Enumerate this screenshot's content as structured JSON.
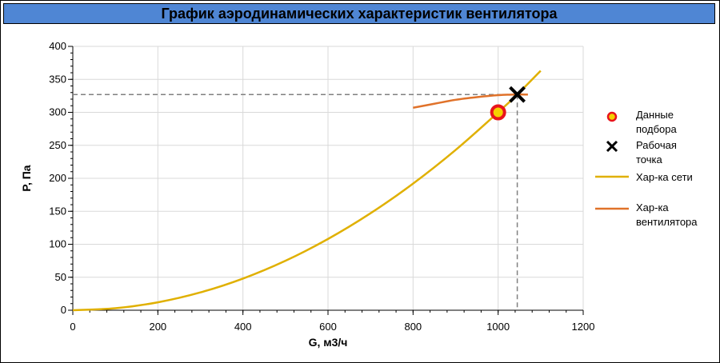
{
  "title": "График аэродинамических характеристик вентилятора",
  "colors": {
    "title_bg": "#4f86d4",
    "network": "#e0b000",
    "fan": "#e0722a",
    "selection_fill": "#f5d000",
    "selection_ring": "#e8141c",
    "operating": "#000000",
    "guide": "#808080",
    "grid": "#d9d9d9"
  },
  "chart_data": {
    "type": "line",
    "title": "График аэродинамических характеристик вентилятора",
    "xlabel": "G, м3/ч",
    "ylabel": "P, Па",
    "xlim": [
      0,
      1200
    ],
    "ylim": [
      0,
      400
    ],
    "xticks": [
      0,
      200,
      400,
      600,
      800,
      1000,
      1200
    ],
    "yticks": [
      0,
      50,
      100,
      150,
      200,
      250,
      300,
      350,
      400
    ],
    "grid": true,
    "legend_position": "right",
    "series": [
      {
        "name": "Хар-ка сети",
        "kind": "line",
        "color": "#e0b000",
        "points": [
          [
            0,
            0
          ],
          [
            100,
            3
          ],
          [
            200,
            12
          ],
          [
            300,
            27
          ],
          [
            400,
            48
          ],
          [
            500,
            75
          ],
          [
            600,
            108
          ],
          [
            700,
            147
          ],
          [
            800,
            192
          ],
          [
            900,
            243
          ],
          [
            1000,
            300
          ],
          [
            1045,
            327
          ],
          [
            1100,
            363
          ]
        ]
      },
      {
        "name": "Хар-ка вентилятора",
        "kind": "line",
        "color": "#e0722a",
        "points": [
          [
            800,
            307
          ],
          [
            850,
            313
          ],
          [
            900,
            319
          ],
          [
            950,
            323
          ],
          [
            1000,
            326
          ],
          [
            1040,
            327
          ],
          [
            1070,
            327
          ]
        ]
      },
      {
        "name": "Данные подбора",
        "kind": "marker",
        "color": "#e8141c",
        "points": [
          [
            1000,
            300
          ]
        ]
      },
      {
        "name": "Рабочая точка",
        "kind": "marker",
        "color": "#000000",
        "points": [
          [
            1045,
            327
          ]
        ]
      }
    ],
    "legend": [
      {
        "label_lines": [
          "Данные",
          "подбора"
        ],
        "icon": "circle-marker-icon"
      },
      {
        "label_lines": [
          "Рабочая",
          "точка"
        ],
        "icon": "x-marker-icon"
      },
      {
        "label_lines": [
          "Хар-ка сети"
        ],
        "icon": "line-icon"
      },
      {
        "label_lines": [
          "Хар-ка",
          "вентилятора"
        ],
        "icon": "line-icon"
      }
    ]
  }
}
